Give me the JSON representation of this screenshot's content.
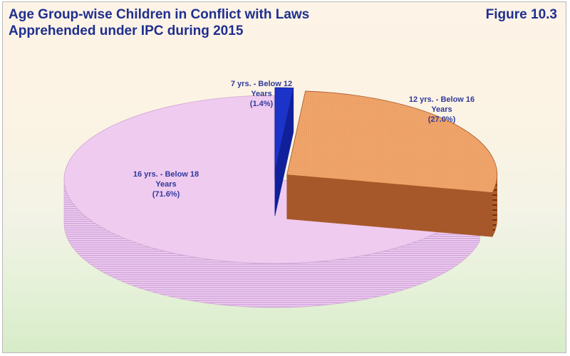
{
  "chart_data": {
    "type": "pie",
    "title": "Age Group-wise Children in Conflict with Laws\nApprehended under IPC during 2015",
    "figure_label": "Figure 10.3",
    "three_d": true,
    "legend": "none",
    "slices": [
      {
        "category": "7 yrs. - Below 12 Years",
        "value": 1.4,
        "label_lines": [
          "7 yrs. - Below 12",
          "Years",
          "(1.4%)"
        ],
        "color": "#1b33c8",
        "side_color": "#10209a",
        "exploded": true
      },
      {
        "category": "12 yrs. - Below 16 Years",
        "value": 27.0,
        "label_lines": [
          "12 yrs. - Below 16",
          "Years",
          "(27.0%)"
        ],
        "color": "#f0a66c",
        "side_color": "#a7582a",
        "exploded": true
      },
      {
        "category": "16 yrs. - Below 18 Years",
        "value": 71.6,
        "label_lines": [
          "16 yrs. - Below 18",
          "Years",
          "(71.6%)"
        ],
        "color": "#f0cbf0",
        "side_color": "#cfa5cf",
        "exploded": false
      }
    ]
  }
}
